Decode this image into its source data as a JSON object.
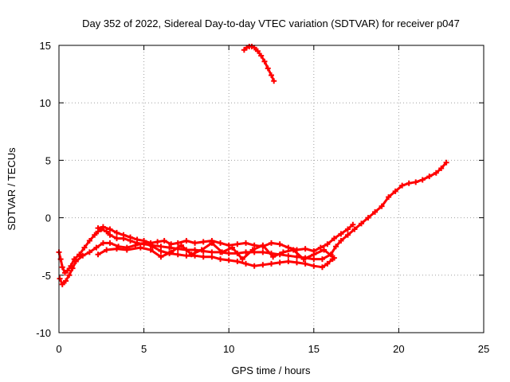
{
  "chart_data": {
    "type": "scatter",
    "title": "Day 352 of 2022, Sidereal Day-to-day VTEC variation (SDTVAR) for receiver p047",
    "xlabel": "GPS time / hours",
    "ylabel": "SDTVAR / TECUs",
    "xlim": [
      0,
      25
    ],
    "ylim": [
      -10,
      15
    ],
    "xticks": [
      0,
      5,
      10,
      15,
      20,
      25
    ],
    "yticks": [
      -10,
      -5,
      0,
      5,
      10,
      15
    ],
    "xtick_labels": [
      "0",
      "5",
      "10",
      "15",
      "20",
      "25"
    ],
    "ytick_labels": [
      "-10",
      "-5",
      "0",
      "5",
      "10",
      "15"
    ],
    "grid": true,
    "legend": "none",
    "marker": "+",
    "color": "#ff0000",
    "series": [
      {
        "name": "main-band",
        "x": [
          0.0,
          0.1,
          0.2,
          0.35,
          0.5,
          0.7,
          0.9,
          1.2,
          1.5,
          1.8,
          2.1,
          2.3,
          2.5,
          2.8,
          3.0,
          3.4,
          3.8,
          4.2,
          4.6,
          5.0,
          5.5,
          6.0,
          6.5,
          7.0,
          7.5,
          8.0,
          8.5,
          9.0,
          9.5,
          10.0,
          10.5,
          11.0,
          11.5,
          12.0,
          12.5,
          13.0,
          13.5,
          14.0,
          14.5,
          15.0,
          15.5,
          16.0,
          16.3,
          16.6,
          17.0,
          17.4,
          17.8,
          18.2,
          18.6,
          19.0,
          19.4,
          19.8,
          20.2,
          20.6,
          21.0,
          21.4,
          21.8,
          22.2,
          22.5,
          22.8
        ],
        "y": [
          -3.0,
          -3.6,
          -4.3,
          -4.8,
          -4.6,
          -4.2,
          -3.6,
          -3.2,
          -2.6,
          -2.0,
          -1.5,
          -1.2,
          -1.0,
          -1.2,
          -1.5,
          -1.8,
          -1.8,
          -2.0,
          -2.2,
          -2.3,
          -2.4,
          -2.5,
          -2.6,
          -2.7,
          -2.8,
          -2.8,
          -2.9,
          -3.0,
          -3.0,
          -3.1,
          -3.1,
          -3.0,
          -3.0,
          -3.0,
          -3.1,
          -3.2,
          -3.3,
          -3.4,
          -3.5,
          -3.6,
          -3.6,
          -3.2,
          -2.5,
          -2.0,
          -1.5,
          -1.0,
          -0.5,
          0.0,
          0.5,
          1.0,
          1.8,
          2.3,
          2.8,
          3.0,
          3.1,
          3.3,
          3.6,
          3.9,
          4.3,
          4.8
        ]
      },
      {
        "name": "lower-band",
        "x": [
          0.05,
          0.2,
          0.4,
          0.6,
          0.8,
          1.0,
          1.4,
          1.8,
          2.2,
          2.6,
          3.0,
          3.5,
          4.0,
          4.5,
          5.0,
          5.5,
          6.0,
          6.5,
          7.0,
          7.5,
          8.0,
          8.5,
          9.0,
          9.5,
          10.0,
          10.5,
          11.0,
          11.5,
          12.0,
          12.5,
          13.0,
          13.5,
          14.0,
          14.5,
          15.0,
          15.5,
          15.8,
          16.1
        ],
        "y": [
          -5.3,
          -5.8,
          -5.5,
          -5.0,
          -4.4,
          -3.8,
          -3.3,
          -3.0,
          -2.6,
          -2.2,
          -2.2,
          -2.5,
          -2.6,
          -2.4,
          -2.2,
          -2.5,
          -2.9,
          -3.1,
          -3.2,
          -3.3,
          -3.3,
          -3.4,
          -3.4,
          -3.6,
          -3.7,
          -3.8,
          -4.0,
          -4.2,
          -4.1,
          -4.0,
          -3.9,
          -3.8,
          -3.9,
          -4.0,
          -4.2,
          -4.3,
          -4.0,
          -3.6
        ]
      },
      {
        "name": "upper-band",
        "x": [
          2.3,
          2.6,
          3.0,
          3.4,
          3.8,
          4.2,
          4.6,
          5.0,
          5.4,
          5.8,
          6.2,
          6.6,
          7.0,
          7.5,
          8.0,
          8.5,
          9.0,
          9.5,
          10.0,
          10.5,
          11.0,
          11.5,
          12.0,
          12.5,
          13.0,
          13.5,
          14.0,
          14.5,
          15.0,
          15.4,
          15.8,
          16.2,
          16.6,
          17.0,
          17.3
        ],
        "y": [
          -0.9,
          -0.8,
          -1.0,
          -1.3,
          -1.5,
          -1.7,
          -1.9,
          -2.0,
          -2.2,
          -2.1,
          -2.0,
          -2.3,
          -2.2,
          -2.0,
          -2.2,
          -2.1,
          -2.0,
          -2.2,
          -2.4,
          -2.3,
          -2.2,
          -2.4,
          -2.5,
          -2.2,
          -2.3,
          -2.6,
          -2.8,
          -2.7,
          -2.9,
          -2.6,
          -2.3,
          -1.8,
          -1.4,
          -1.0,
          -0.6
        ]
      },
      {
        "name": "crossing-arcs",
        "x": [
          2.3,
          2.8,
          3.4,
          4.0,
          4.8,
          5.4,
          6.0,
          6.6,
          7.2,
          7.8,
          8.4,
          9.0,
          9.6,
          10.2,
          10.8,
          11.4,
          12.0,
          12.6,
          13.2,
          13.8,
          14.4,
          15.0,
          15.6,
          16.2
        ],
        "y": [
          -3.2,
          -2.8,
          -2.7,
          -2.8,
          -2.6,
          -2.8,
          -3.4,
          -3.0,
          -2.4,
          -3.2,
          -2.8,
          -2.2,
          -3.0,
          -2.6,
          -3.6,
          -2.8,
          -2.4,
          -3.4,
          -3.0,
          -2.8,
          -3.6,
          -3.2,
          -2.8,
          -3.5
        ]
      },
      {
        "name": "isolated-arc",
        "x": [
          10.9,
          11.05,
          11.2,
          11.35,
          11.5,
          11.7,
          11.9,
          12.1,
          12.3,
          12.5,
          12.65
        ],
        "y": [
          14.6,
          14.8,
          14.9,
          14.9,
          14.8,
          14.5,
          14.1,
          13.6,
          13.0,
          12.4,
          11.9
        ]
      }
    ]
  }
}
